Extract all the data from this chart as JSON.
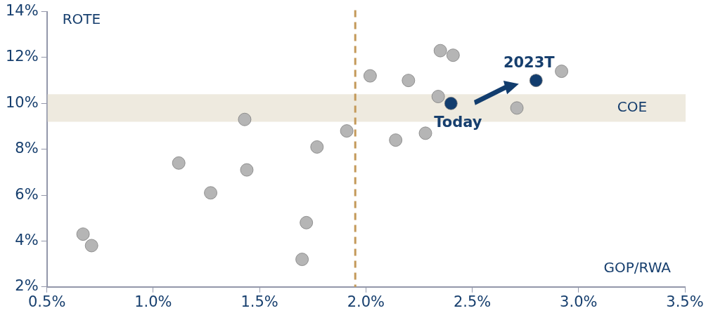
{
  "chart_data": {
    "type": "scatter",
    "xlabel": "GOP/RWA",
    "ylabel": "ROTE",
    "series": [
      {
        "color": "#b5b5b5",
        "x": [
          0.67,
          0.71,
          1.12,
          1.27,
          1.43,
          1.44,
          1.7,
          1.72,
          1.77,
          1.91,
          2.02,
          2.14,
          2.2,
          2.28,
          2.35,
          2.41,
          2.34,
          2.71,
          2.92
        ],
        "values": [
          4.3,
          3.8,
          7.4,
          6.1,
          9.3,
          7.1,
          3.2,
          4.8,
          8.1,
          8.8,
          11.2,
          8.4,
          11.0,
          8.7,
          12.3,
          12.1,
          10.3,
          9.8,
          11.4
        ]
      },
      {
        "color": "#123d6e",
        "x": [
          2.4,
          2.8
        ],
        "values": [
          10.0,
          11.0
        ]
      }
    ],
    "xlim": [
      0.5,
      3.5
    ],
    "ylim": [
      2,
      14
    ],
    "xticks": [
      {
        "value": 0.5,
        "label": "0.5%"
      },
      {
        "value": 1.0,
        "label": "1.0%"
      },
      {
        "value": 1.5,
        "label": "1.5%"
      },
      {
        "value": 2.0,
        "label": "2.0%"
      },
      {
        "value": 2.5,
        "label": "2.5%"
      },
      {
        "value": 3.0,
        "label": "3.0%"
      },
      {
        "value": 3.5,
        "label": "3.5%"
      }
    ],
    "yticks": [
      {
        "value": 2,
        "label": "2%"
      },
      {
        "value": 4,
        "label": "4%"
      },
      {
        "value": 6,
        "label": "6%"
      },
      {
        "value": 8,
        "label": "8%"
      },
      {
        "value": 10,
        "label": "10%"
      },
      {
        "value": 12,
        "label": "12%"
      },
      {
        "value": 14,
        "label": "14%"
      }
    ],
    "ref_lines": [
      {
        "axis": "x",
        "value": 1.95,
        "color": "#c49a5a",
        "line_style": "dashed"
      }
    ],
    "bands": [
      {
        "axis": "y",
        "from": 9.2,
        "to": 10.4,
        "label": "COE",
        "color": "#eeeadf"
      }
    ],
    "annotations": [
      {
        "text": "Today",
        "x": 2.4,
        "y": 10.0
      },
      {
        "text": "2023T",
        "x": 2.8,
        "y": 11.0
      }
    ],
    "marker": "circle",
    "grid": false,
    "legend": false
  }
}
